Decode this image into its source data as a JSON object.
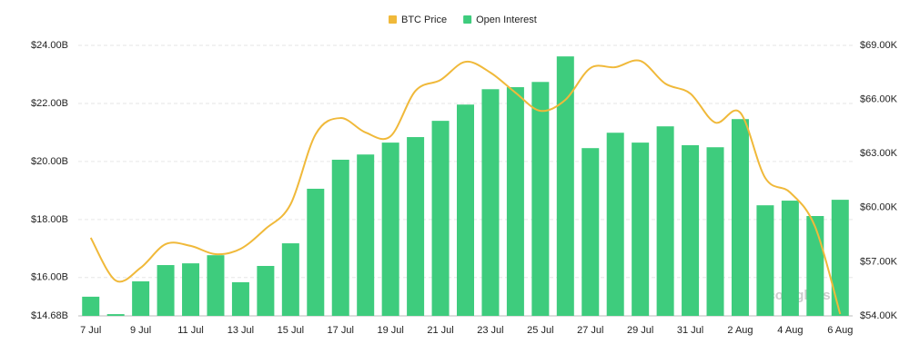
{
  "chart_data": {
    "type": "bar-line",
    "categories": [
      "7 Jul",
      null,
      "9 Jul",
      null,
      "11 Jul",
      null,
      "13 Jul",
      null,
      "15 Jul",
      null,
      "17 Jul",
      null,
      "19 Jul",
      null,
      "21 Jul",
      null,
      "23 Jul",
      null,
      "25 Jul",
      null,
      "27 Jul",
      null,
      "29 Jul",
      null,
      "31 Jul",
      null,
      "2 Aug",
      null,
      "4 Aug",
      null,
      "6 Aug"
    ],
    "series": [
      {
        "name": "BTC Price",
        "color": "#f0b93a",
        "type": "line",
        "axis": "y2",
        "values": [
          58.33,
          55.96,
          56.67,
          57.98,
          57.88,
          57.42,
          57.72,
          58.83,
          60.19,
          64.07,
          64.97,
          64.17,
          63.96,
          66.48,
          67.08,
          68.09,
          67.49,
          66.38,
          65.37,
          65.98,
          67.74,
          67.79,
          68.14,
          66.88,
          66.33,
          64.72,
          65.27,
          61.65,
          60.84,
          58.93,
          54.1
        ]
      },
      {
        "name": "Open Interest",
        "color": "#3ecc7d",
        "type": "bar",
        "values": [
          15.34,
          14.74,
          15.87,
          16.43,
          16.49,
          16.77,
          15.84,
          16.4,
          17.18,
          19.06,
          20.06,
          20.24,
          20.65,
          20.84,
          21.4,
          21.96,
          22.49,
          22.56,
          22.74,
          23.62,
          20.46,
          20.99,
          20.65,
          21.21,
          20.56,
          20.49,
          21.46,
          18.49,
          18.65,
          18.12,
          18.68
        ]
      }
    ],
    "ylim": [
      14.68,
      24
    ],
    "yticks": [
      {
        "value": 14.68,
        "label": "$14.68B"
      },
      {
        "value": 16,
        "label": "$16.00B"
      },
      {
        "value": 18,
        "label": "$18.00B"
      },
      {
        "value": 20,
        "label": "$20.00B"
      },
      {
        "value": 22,
        "label": "$22.00B"
      },
      {
        "value": 24,
        "label": "$24.00B"
      }
    ],
    "y2lim": [
      54,
      69
    ],
    "y2ticks": [
      {
        "value": 54,
        "label": "$54.00K"
      },
      {
        "value": 57,
        "label": "$57.00K"
      },
      {
        "value": 60,
        "label": "$60.00K"
      },
      {
        "value": 63,
        "label": "$63.00K"
      },
      {
        "value": 66,
        "label": "$66.00K"
      },
      {
        "value": 69,
        "label": "$69.00K"
      }
    ],
    "grid": true,
    "legend": "top",
    "watermark": "coinglass"
  }
}
